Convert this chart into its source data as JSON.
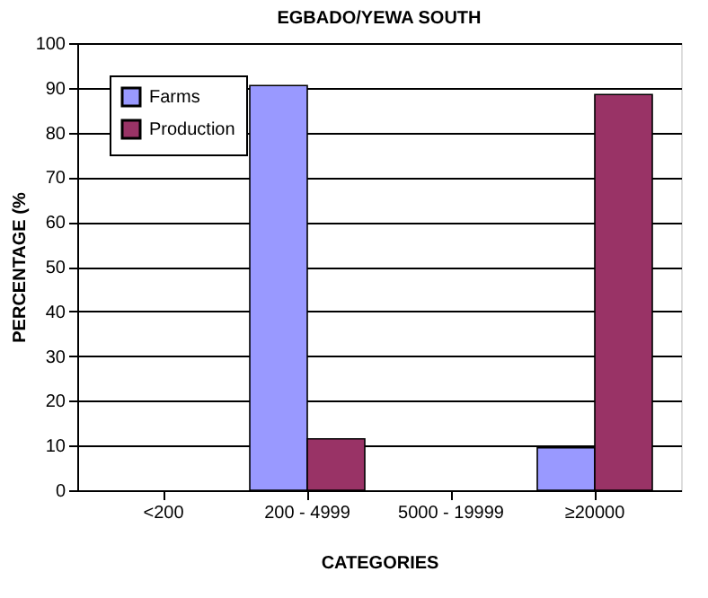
{
  "chart_data": {
    "type": "bar",
    "title": "EGBADO/YEWA SOUTH",
    "xlabel": "CATEGORIES",
    "ylabel": "PERCENTAGE (%",
    "categories": [
      "<200",
      "200 - 4999",
      "5000 - 19999",
      "≥20000"
    ],
    "series": [
      {
        "name": "Farms",
        "color": "#9999ff",
        "values": [
          0,
          90.5,
          0,
          9.5
        ]
      },
      {
        "name": "Production",
        "color": "#993366",
        "values": [
          0,
          11.5,
          0,
          88.5
        ]
      }
    ],
    "ylim": [
      0,
      100
    ],
    "yticks": [
      0,
      10,
      20,
      30,
      40,
      50,
      60,
      70,
      80,
      90,
      100
    ],
    "grid": "y",
    "legend": "top left"
  }
}
